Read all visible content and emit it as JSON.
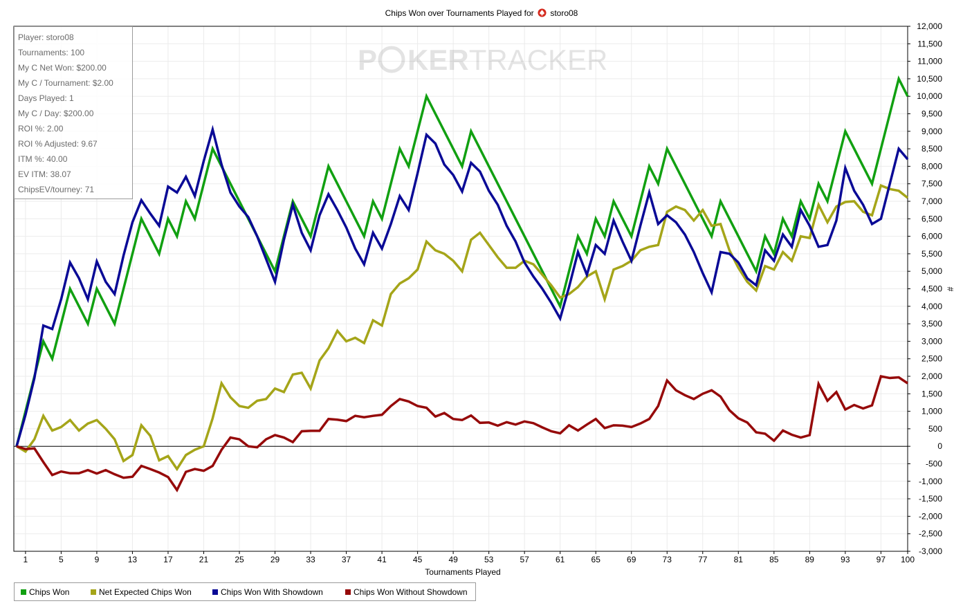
{
  "title": {
    "prefix": "Chips Won over Tournaments Played for",
    "player": "storo08",
    "icon": "spade-icon"
  },
  "watermark": {
    "part1": "P",
    "part2": "KER",
    "part3": "TRACKER"
  },
  "stats": [
    "Player: storo08",
    "Tournaments: 100",
    "My C Net Won: $200.00",
    "My C / Tournament: $2.00",
    "Days Played: 1",
    "My C / Day: $200.00",
    "ROI %: 2.00",
    "ROI % Adjusted: 9.67",
    "ITM %: 40.00",
    "EV ITM: 38.07",
    "ChipsEV/tourney: 71"
  ],
  "legend": [
    {
      "label": "Chips Won",
      "color": "#11a011"
    },
    {
      "label": "Net Expected Chips Won",
      "color": "#a5a519"
    },
    {
      "label": "Chips Won With Showdown",
      "color": "#0a0a96"
    },
    {
      "label": "Chips Won Without Showdown",
      "color": "#960a0a"
    }
  ],
  "chart_data": {
    "type": "line",
    "xlabel": "Tournaments Played",
    "ylabel": "#",
    "xlim": [
      0,
      100
    ],
    "ylim": [
      -3000,
      12000
    ],
    "x_ticks": [
      1,
      5,
      9,
      13,
      17,
      21,
      25,
      29,
      33,
      37,
      41,
      45,
      49,
      53,
      57,
      61,
      65,
      69,
      73,
      77,
      81,
      85,
      89,
      93,
      97,
      100
    ],
    "y_ticks": [
      -3000,
      -2500,
      -2000,
      -1500,
      -1000,
      -500,
      0,
      500,
      1000,
      1500,
      2000,
      2500,
      3000,
      3500,
      4000,
      4500,
      5000,
      5500,
      6000,
      6500,
      7000,
      7500,
      8000,
      8500,
      9000,
      9500,
      10000,
      10500,
      11000,
      11500,
      12000
    ],
    "y_tick_labels": [
      "-3,000",
      "-2,500",
      "-2,000",
      "-1,500",
      "-1,000",
      "-500",
      "0",
      "500",
      "1,000",
      "1,500",
      "2,000",
      "2,500",
      "3,000",
      "3,500",
      "4,000",
      "4,500",
      "5,000",
      "5,500",
      "6,000",
      "6,500",
      "7,000",
      "7,500",
      "8,000",
      "8,500",
      "9,000",
      "9,500",
      "10,000",
      "10,500",
      "11,000",
      "11,500",
      "12,000"
    ],
    "grid": true,
    "legend_position": "bottom-left",
    "series": [
      {
        "name": "Chips Won",
        "color": "#11a011",
        "values": [
          0,
          1000,
          2000,
          3000,
          2500,
          3500,
          4500,
          4000,
          3500,
          4500,
          4000,
          3500,
          4500,
          5500,
          6500,
          6000,
          5500,
          6500,
          6000,
          7000,
          6500,
          7500,
          8500,
          8000,
          7500,
          7000,
          6500,
          6000,
          5500,
          5000,
          6000,
          7000,
          6500,
          6000,
          7000,
          8000,
          7500,
          7000,
          6500,
          6000,
          7000,
          6500,
          7500,
          8500,
          8000,
          9000,
          10000,
          9500,
          9000,
          8500,
          8000,
          9000,
          8500,
          8000,
          7500,
          7000,
          6500,
          6000,
          5500,
          5000,
          4500,
          4000,
          5000,
          6000,
          5500,
          6500,
          6000,
          7000,
          6500,
          6000,
          7000,
          8000,
          7500,
          8500,
          8000,
          7500,
          7000,
          6500,
          6000,
          7000,
          6500,
          6000,
          5500,
          5000,
          6000,
          5500,
          6500,
          6000,
          7000,
          6500,
          7500,
          7000,
          8000,
          9000,
          8500,
          8000,
          7500,
          8500,
          9500,
          10500,
          10000
        ]
      },
      {
        "name": "Net Expected Chips Won",
        "color": "#a5a519",
        "values": [
          0,
          -150,
          200,
          870,
          450,
          550,
          750,
          450,
          650,
          750,
          500,
          200,
          -420,
          -250,
          600,
          300,
          -400,
          -280,
          -650,
          -250,
          -100,
          0,
          800,
          1800,
          1400,
          1150,
          1100,
          1300,
          1350,
          1650,
          1550,
          2050,
          2100,
          1650,
          2450,
          2800,
          3300,
          3000,
          3100,
          2950,
          3600,
          3450,
          4350,
          4650,
          4800,
          5050,
          5850,
          5600,
          5500,
          5300,
          5000,
          5900,
          6100,
          5750,
          5400,
          5100,
          5100,
          5300,
          5200,
          4900,
          4600,
          4250,
          4350,
          4550,
          4850,
          5000,
          4200,
          5050,
          5150,
          5300,
          5600,
          5700,
          5750,
          6700,
          6850,
          6750,
          6450,
          6750,
          6300,
          6350,
          5600,
          5100,
          4700,
          4450,
          5150,
          5050,
          5550,
          5300,
          6000,
          5950,
          6900,
          6400,
          6850,
          6980,
          7000,
          6700,
          6600,
          7450,
          7350,
          7300,
          7100
        ]
      },
      {
        "name": "Chips Won With Showdown",
        "color": "#0a0a96",
        "values": [
          0,
          900,
          1950,
          3450,
          3350,
          4200,
          5250,
          4800,
          4200,
          5280,
          4700,
          4350,
          5450,
          6400,
          7030,
          6650,
          6300,
          7420,
          7250,
          7700,
          7150,
          8150,
          9050,
          8050,
          7250,
          6850,
          6550,
          6000,
          5350,
          4700,
          5900,
          6900,
          6100,
          5600,
          6600,
          7200,
          6750,
          6250,
          5650,
          5200,
          6100,
          5650,
          6350,
          7150,
          6750,
          7800,
          8900,
          8650,
          8050,
          7750,
          7280,
          8100,
          7850,
          7300,
          6900,
          6300,
          5850,
          5250,
          4850,
          4500,
          4100,
          3650,
          4550,
          5550,
          4900,
          5750,
          5500,
          6450,
          5850,
          5300,
          6300,
          7250,
          6350,
          6600,
          6400,
          6050,
          5550,
          4950,
          4400,
          5550,
          5500,
          5250,
          4800,
          4600,
          5600,
          5300,
          6050,
          5700,
          6750,
          6300,
          5700,
          5750,
          6450,
          7950,
          7300,
          6900,
          6350,
          6500,
          7500,
          8500,
          8200
        ]
      },
      {
        "name": "Chips Won Without Showdown",
        "color": "#960a0a",
        "values": [
          0,
          -80,
          -60,
          -450,
          -820,
          -720,
          -770,
          -770,
          -680,
          -780,
          -680,
          -800,
          -900,
          -870,
          -560,
          -650,
          -750,
          -880,
          -1250,
          -730,
          -650,
          -700,
          -560,
          -100,
          250,
          200,
          0,
          -30,
          200,
          320,
          250,
          120,
          430,
          440,
          440,
          780,
          760,
          720,
          870,
          830,
          870,
          900,
          1150,
          1350,
          1280,
          1150,
          1100,
          850,
          950,
          780,
          750,
          880,
          670,
          680,
          590,
          690,
          620,
          710,
          660,
          540,
          430,
          370,
          600,
          450,
          620,
          780,
          520,
          600,
          590,
          550,
          650,
          780,
          1150,
          1880,
          1600,
          1460,
          1350,
          1500,
          1600,
          1420,
          1030,
          800,
          680,
          400,
          360,
          160,
          450,
          330,
          250,
          320,
          1780,
          1300,
          1550,
          1050,
          1180,
          1080,
          1170,
          2000,
          1950,
          1970,
          1800
        ]
      }
    ]
  }
}
